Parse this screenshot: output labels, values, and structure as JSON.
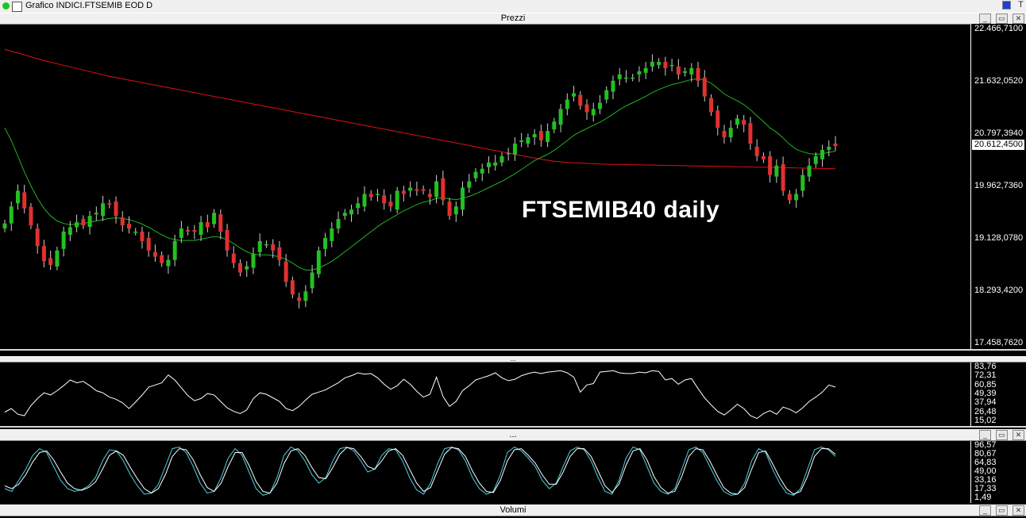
{
  "window": {
    "title": "Grafico INDICI.FTSEMIB EOD D",
    "right_glyphs": "T"
  },
  "panes": {
    "price_title": "Prezzi",
    "osc1_title": "...",
    "osc2_title": "...",
    "volume_title": "Volumi"
  },
  "buttons": {
    "close": "✕",
    "restore": "▭",
    "minimize": "_"
  },
  "annotation": "FTSEMIB40 daily",
  "colors": {
    "bull": "#22c022",
    "bear": "#e23030",
    "sma_short": "#21b321",
    "sma_long": "#e01010",
    "osc": "#ffffff",
    "stoch_k": "#4dd0e1",
    "stoch_d": "#ffffff"
  },
  "chart_data": [
    {
      "type": "candlestick",
      "title": "",
      "ylim": [
        17458.762,
        22466.71
      ],
      "yticks": [
        "22.466,7100",
        "21.632,0520",
        "20.797,3940",
        "19.962,7360",
        "19.128,0780",
        "18.293,4200",
        "17.458,7620"
      ],
      "last_price_label": "20.612,4500",
      "close": [
        19380,
        19650,
        19900,
        19620,
        19350,
        19020,
        18780,
        18720,
        18950,
        19250,
        19320,
        19400,
        19350,
        19500,
        19550,
        19700,
        19680,
        19500,
        19350,
        19300,
        19250,
        19100,
        18950,
        18850,
        18750,
        18800,
        19100,
        19300,
        19250,
        19250,
        19400,
        19320,
        19550,
        19250,
        18950,
        18750,
        18600,
        18700,
        18900,
        19100,
        19050,
        18950,
        18800,
        18450,
        18250,
        18150,
        18300,
        18600,
        18950,
        19150,
        19300,
        19450,
        19550,
        19600,
        19700,
        19850,
        19800,
        19850,
        19700,
        19650,
        19900,
        19850,
        19950,
        19900,
        19900,
        19800,
        20050,
        19750,
        19500,
        19650,
        19950,
        20050,
        20200,
        20250,
        20350,
        20350,
        20450,
        20500,
        20650,
        20700,
        20750,
        20800,
        20700,
        20850,
        21000,
        21200,
        21350,
        21450,
        21250,
        21150,
        21200,
        21300,
        21500,
        21650,
        21750,
        21700,
        21700,
        21800,
        21850,
        21950,
        21950,
        21850,
        21900,
        21750,
        21800,
        21850,
        21650,
        21400,
        21150,
        20900,
        20750,
        20900,
        21050,
        20950,
        20650,
        20450,
        20400,
        20150,
        20300,
        19900,
        19750,
        19850,
        20150,
        20300,
        20450,
        20550,
        20600,
        20612
      ],
      "sma_short": [
        20900,
        20700,
        20450,
        20200,
        19980,
        19780,
        19620,
        19500,
        19420,
        19380,
        19360,
        19370,
        19380,
        19400,
        19420,
        19440,
        19460,
        19470,
        19460,
        19440,
        19410,
        19370,
        19320,
        19260,
        19200,
        19150,
        19120,
        19110,
        19110,
        19110,
        19130,
        19150,
        19170,
        19160,
        19120,
        19060,
        18990,
        18930,
        18890,
        18880,
        18880,
        18870,
        18850,
        18810,
        18750,
        18680,
        18640,
        18640,
        18670,
        18720,
        18780,
        18850,
        18930,
        19010,
        19090,
        19170,
        19250,
        19330,
        19400,
        19460,
        19520,
        19580,
        19630,
        19680,
        19720,
        19740,
        19780,
        19790,
        19770,
        19760,
        19780,
        19810,
        19850,
        19900,
        19950,
        20000,
        20050,
        20110,
        20170,
        20240,
        20310,
        20380,
        20430,
        20480,
        20540,
        20620,
        20700,
        20780,
        20840,
        20890,
        20940,
        20990,
        21050,
        21120,
        21190,
        21250,
        21300,
        21350,
        21400,
        21460,
        21510,
        21550,
        21590,
        21610,
        21640,
        21670,
        21680,
        21660,
        21610,
        21530,
        21440,
        21380,
        21330,
        21270,
        21190,
        21090,
        21000,
        20900,
        20830,
        20740,
        20640,
        20560,
        20520,
        20490,
        20480,
        20490,
        20510,
        20530
      ],
      "sma_long": [
        22150,
        22120,
        22090,
        22060,
        22030,
        22000,
        21970,
        21945,
        21920,
        21895,
        21870,
        21845,
        21820,
        21795,
        21770,
        21745,
        21720,
        21700,
        21680,
        21660,
        21640,
        21620,
        21600,
        21580,
        21560,
        21540,
        21520,
        21500,
        21480,
        21460,
        21440,
        21420,
        21400,
        21380,
        21360,
        21340,
        21320,
        21300,
        21280,
        21260,
        21240,
        21220,
        21200,
        21180,
        21160,
        21140,
        21120,
        21100,
        21080,
        21060,
        21040,
        21020,
        21000,
        20980,
        20960,
        20940,
        20920,
        20900,
        20880,
        20860,
        20840,
        20820,
        20800,
        20780,
        20760,
        20740,
        20720,
        20700,
        20680,
        20660,
        20640,
        20620,
        20600,
        20580,
        20560,
        20540,
        20520,
        20500,
        20480,
        20460,
        20440,
        20420,
        20400,
        20385,
        20370,
        20360,
        20350,
        20345,
        20340,
        20335,
        20330,
        20325,
        20322,
        20320,
        20318,
        20316,
        20314,
        20312,
        20310,
        20308,
        20306,
        20304,
        20302,
        20300,
        20298,
        20296,
        20294,
        20292,
        20290,
        20288,
        20286,
        20284,
        20282,
        20280,
        20278,
        20276,
        20274,
        20272,
        20270,
        20268,
        20265,
        20262,
        20260,
        20258,
        20256,
        20254,
        20252,
        20250
      ]
    },
    {
      "type": "line",
      "title": "",
      "yticks": [
        "83,76",
        "72,31",
        "60,85",
        "49,39",
        "37,94",
        "26,48",
        "15,02"
      ],
      "ylim": [
        15.02,
        83.76
      ],
      "values": [
        25,
        30,
        22,
        20,
        34,
        44,
        52,
        49,
        55,
        62,
        70,
        66,
        68,
        62,
        55,
        52,
        46,
        43,
        38,
        30,
        39,
        49,
        60,
        63,
        66,
        77,
        70,
        59,
        48,
        41,
        44,
        51,
        49,
        40,
        31,
        26,
        23,
        28,
        44,
        52,
        50,
        45,
        40,
        30,
        27,
        33,
        42,
        50,
        53,
        56,
        61,
        66,
        73,
        76,
        80,
        78,
        79,
        73,
        64,
        57,
        62,
        71,
        64,
        54,
        46,
        50,
        74,
        47,
        33,
        40,
        55,
        62,
        70,
        73,
        76,
        80,
        73,
        69,
        71,
        76,
        79,
        81,
        79,
        81,
        82,
        83,
        80,
        74,
        53,
        63,
        65,
        81,
        82,
        83,
        80,
        79,
        79,
        81,
        80,
        83,
        82,
        70,
        72,
        64,
        70,
        72,
        58,
        45,
        35,
        26,
        21,
        28,
        36,
        30,
        20,
        16,
        23,
        27,
        22,
        32,
        29,
        24,
        31,
        40,
        46,
        53,
        63,
        60
      ]
    },
    {
      "type": "line",
      "title": "",
      "yticks": [
        "96,57",
        "80,67",
        "64,83",
        "49,00",
        "33,16",
        "17,33",
        "1,49"
      ],
      "ylim": [
        1.49,
        96.57
      ],
      "series": [
        {
          "values": [
            20,
            15,
            35,
            55,
            80,
            92,
            85,
            60,
            35,
            20,
            15,
            18,
            25,
            40,
            70,
            90,
            88,
            70,
            45,
            25,
            10,
            12,
            28,
            60,
            92,
            95,
            85,
            60,
            30,
            12,
            15,
            40,
            75,
            92,
            80,
            50,
            20,
            8,
            12,
            40,
            80,
            95,
            88,
            70,
            45,
            30,
            40,
            70,
            92,
            95,
            88,
            70,
            50,
            55,
            80,
            92,
            90,
            70,
            40,
            18,
            10,
            30,
            65,
            92,
            95,
            90,
            70,
            40,
            20,
            10,
            15,
            45,
            85,
            95,
            88,
            75,
            60,
            35,
            20,
            30,
            60,
            88,
            95,
            90,
            70,
            40,
            15,
            10,
            35,
            75,
            95,
            90,
            60,
            30,
            15,
            10,
            20,
            55,
            90,
            95,
            85,
            60,
            35,
            15,
            8,
            10,
            30,
            70,
            92,
            85,
            55,
            30,
            12,
            8,
            20,
            55,
            90,
            95,
            90,
            78
          ]
        },
        {
          "values": [
            25,
            20,
            28,
            45,
            68,
            85,
            88,
            72,
            50,
            30,
            20,
            17,
            22,
            32,
            55,
            80,
            88,
            80,
            58,
            38,
            20,
            12,
            20,
            45,
            78,
            92,
            90,
            72,
            45,
            22,
            15,
            30,
            60,
            85,
            85,
            62,
            33,
            15,
            12,
            30,
            65,
            88,
            92,
            80,
            58,
            40,
            38,
            58,
            82,
            94,
            92,
            78,
            60,
            55,
            70,
            88,
            92,
            80,
            55,
            30,
            15,
            22,
            52,
            82,
            94,
            92,
            78,
            52,
            30,
            15,
            13,
            35,
            70,
            90,
            92,
            80,
            66,
            45,
            28,
            28,
            50,
            78,
            92,
            92,
            78,
            52,
            25,
            13,
            28,
            62,
            88,
            92,
            72,
            42,
            22,
            12,
            15,
            42,
            78,
            92,
            90,
            70,
            45,
            22,
            12,
            10,
            22,
            55,
            85,
            88,
            65,
            40,
            20,
            10,
            15,
            42,
            78,
            92,
            92,
            82
          ]
        }
      ]
    }
  ]
}
